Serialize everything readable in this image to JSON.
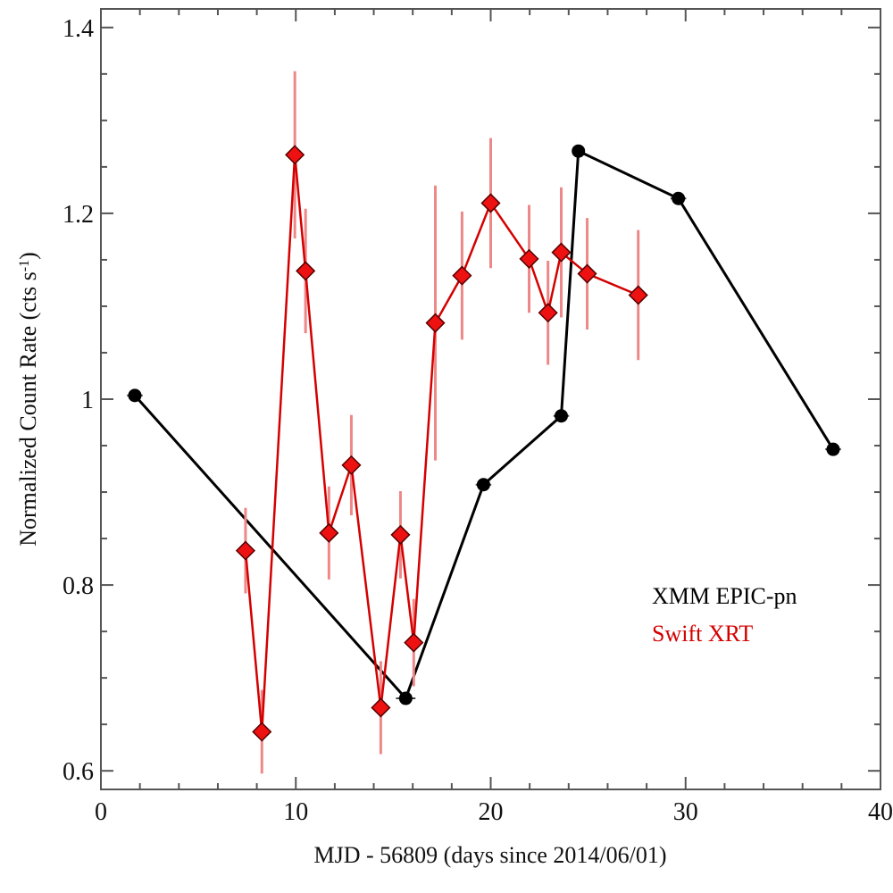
{
  "chart_data": {
    "type": "line",
    "title": "",
    "xlabel": "MJD - 56809 (days since 2014/06/01)",
    "ylabel": "Normalized Count Rate (cts s",
    "ylabel_sup": "-1",
    "ylabel_close": ")",
    "xlim": [
      0,
      40
    ],
    "ylim": [
      0.58,
      1.42
    ],
    "xticks": [
      0,
      10,
      20,
      30,
      40
    ],
    "xtick_labels": [
      "0",
      "10",
      "20",
      "30",
      "40"
    ],
    "x_minor_step": 2,
    "yticks": [
      0.6,
      0.8,
      1.0,
      1.2,
      1.4
    ],
    "ytick_labels": [
      "0.6",
      "0.8",
      "1",
      "1.2",
      "1.4"
    ],
    "y_minor_step": 0.05,
    "grid": false,
    "legend_position": "lower-right",
    "series": [
      {
        "name": "XMM EPIC-pn",
        "color": "#000000",
        "marker": "circle",
        "x": [
          1.74,
          15.64,
          19.63,
          23.62,
          24.5,
          29.63,
          37.57
        ],
        "y": [
          1.004,
          0.678,
          0.908,
          0.982,
          1.267,
          1.216,
          0.946
        ],
        "xerr": [
          0.4,
          0.5,
          0.4,
          0.4,
          0.3,
          0.4,
          0.4
        ],
        "yerr": [
          0,
          0,
          0,
          0,
          0,
          0,
          0
        ]
      },
      {
        "name": "Swift XRT",
        "color": "#d40000",
        "marker_fill": "#ee1111",
        "errbar_color": "#ee8888",
        "marker": "diamond",
        "x": [
          7.42,
          8.26,
          9.95,
          10.5,
          11.7,
          12.85,
          14.36,
          15.37,
          16.05,
          17.16,
          18.53,
          20.0,
          21.97,
          22.94,
          23.62,
          24.95,
          27.57
        ],
        "y": [
          0.837,
          0.642,
          1.263,
          1.138,
          0.856,
          0.929,
          0.668,
          0.854,
          0.738,
          1.082,
          1.133,
          1.211,
          1.151,
          1.093,
          1.158,
          1.135,
          1.112
        ],
        "yerr": [
          0.046,
          0.045,
          0.09,
          0.067,
          0.05,
          0.054,
          0.05,
          0.047,
          0.047,
          0.148,
          0.069,
          0.07,
          0.058,
          0.056,
          0.07,
          0.06,
          0.07
        ]
      }
    ]
  }
}
